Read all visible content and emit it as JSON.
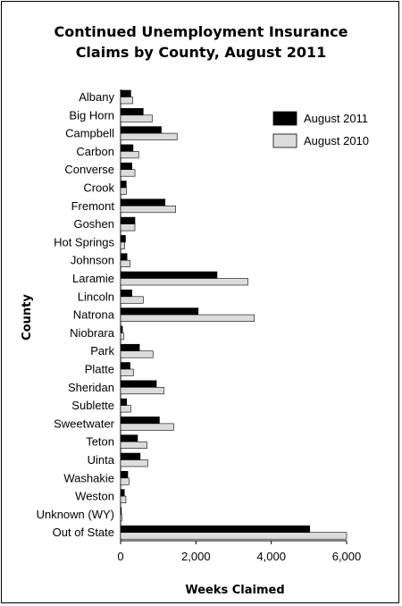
{
  "chart_data": {
    "type": "bar",
    "orientation": "horizontal",
    "title_lines": [
      "Continued Unemployment Insurance",
      "Claims by County, August 2011"
    ],
    "xlabel": "Weeks Claimed",
    "ylabel": "County",
    "xlim": [
      0,
      6000
    ],
    "xticks": [
      "0",
      "2,000",
      "4,000",
      "6,000"
    ],
    "xtick_values": [
      0,
      2000,
      4000,
      6000
    ],
    "grid": false,
    "legend_position": "top-right",
    "categories": [
      "Albany",
      "Big Horn",
      "Campbell",
      "Carbon",
      "Converse",
      "Crook",
      "Fremont",
      "Goshen",
      "Hot Springs",
      "Johnson",
      "Laramie",
      "Lincoln",
      "Natrona",
      "Niobrara",
      "Park",
      "Platte",
      "Sheridan",
      "Sublette",
      "Sweetwater",
      "Teton",
      "Uinta",
      "Washakie",
      "Weston",
      "Unknown (WY)",
      "Out of State"
    ],
    "series": [
      {
        "name": "August 2011",
        "color": "#000000",
        "values": [
          270,
          600,
          1080,
          330,
          300,
          150,
          1180,
          380,
          130,
          170,
          2560,
          300,
          2060,
          50,
          500,
          250,
          950,
          160,
          1030,
          450,
          520,
          190,
          100,
          20,
          5020
        ]
      },
      {
        "name": "August 2010",
        "color": "#dcdcdc",
        "values": [
          320,
          840,
          1500,
          480,
          380,
          150,
          1460,
          380,
          110,
          250,
          3380,
          600,
          3550,
          80,
          860,
          340,
          1150,
          270,
          1410,
          700,
          720,
          220,
          140,
          30,
          6000
        ]
      }
    ]
  }
}
